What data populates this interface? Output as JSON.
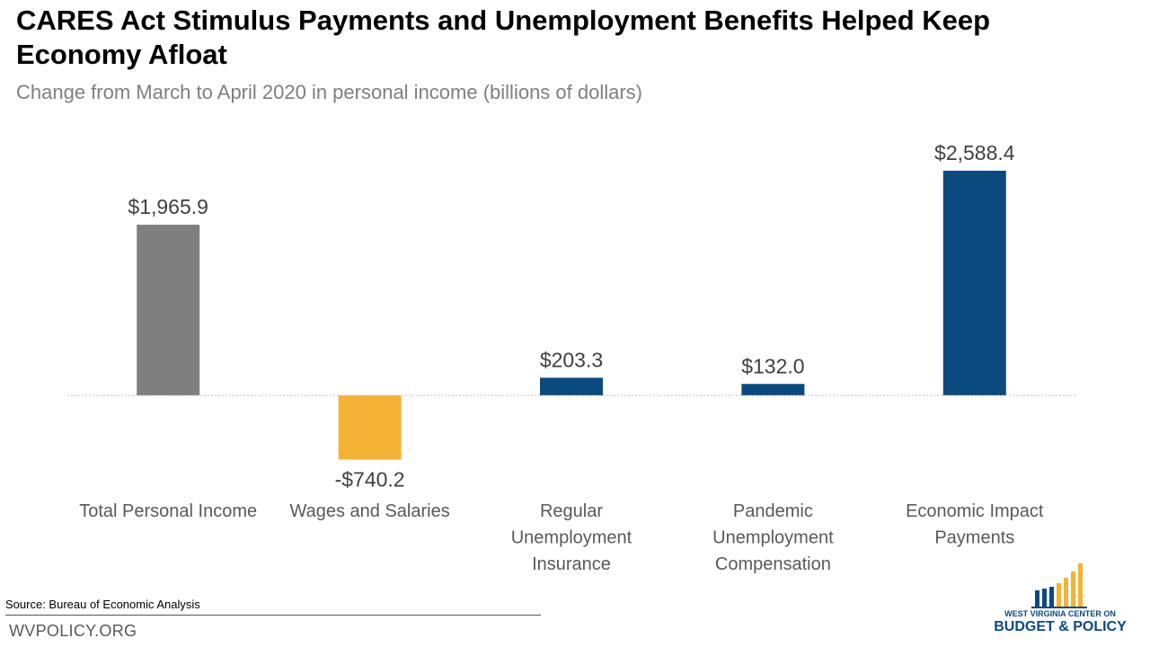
{
  "header": {
    "title": "CARES Act Stimulus Payments and Unemployment Benefits Helped Keep Economy Afloat",
    "subtitle": "Change from March to April 2020 in personal income (billions of dollars)"
  },
  "chart_data": {
    "type": "bar",
    "title": "CARES Act Stimulus Payments and Unemployment Benefits Helped Keep Economy Afloat",
    "subtitle": "Change from March to April 2020 in personal income (billions of dollars)",
    "categories": [
      [
        "Total Personal Income"
      ],
      [
        "Wages and Salaries"
      ],
      [
        "Regular",
        "Unemployment",
        "Insurance"
      ],
      [
        "Pandemic",
        "Unemployment",
        "Compensation"
      ],
      [
        "Economic Impact",
        "Payments"
      ]
    ],
    "values": [
      1965.9,
      -740.2,
      203.3,
      132.0,
      2588.4
    ],
    "data_labels": [
      "$1,965.9",
      "-$740.2",
      "$203.3",
      "$132.0",
      "$2,588.4"
    ],
    "colors": [
      "#7f7f7f",
      "#f5b335",
      "#0b4a7e",
      "#0b4a7e",
      "#0b4a7e"
    ],
    "ylim": [
      -1300,
      2900
    ],
    "grid": false,
    "zero_line": true
  },
  "footer": {
    "source": "Source: Bureau of Economic Analysis",
    "site": "WVPOLICY.ORG"
  },
  "logo": {
    "line1": "WEST VIRGINIA CENTER ON",
    "line2": "BUDGET & POLICY"
  }
}
